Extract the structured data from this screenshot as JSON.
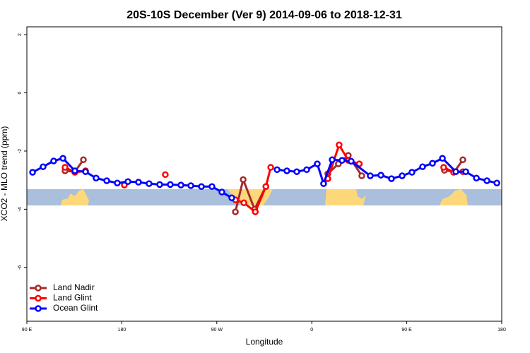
{
  "chart_data": {
    "type": "line",
    "title": "20S-10S December (Ver 9)   2014-09-06 to 2018-12-31",
    "xlabel": "Longitude",
    "ylabel": "XCO2 - MLO trend (ppm)",
    "xlim": [
      90,
      540
    ],
    "ylim": [
      -7.85,
      2.27
    ],
    "xticks": [
      {
        "value": 90,
        "label": "90 E"
      },
      180,
      {
        "value": 270,
        "label": "90 W"
      },
      {
        "value": 360,
        "label": "0"
      },
      {
        "value": 450,
        "label": "90 E"
      },
      {
        "value": 540,
        "label": "180"
      }
    ],
    "yticks": [
      2,
      0,
      -2,
      -4,
      -6
    ],
    "legend": "bottom-left",
    "series": [
      {
        "name": "Land Nadir",
        "color": "#a52a2a",
        "x": [
          126.2,
          135.5,
          143.6,
          null,
          287.6,
          295.0,
          305.8,
          316.5,
          null,
          375.2,
          385.2,
          394.6,
          407.4,
          null,
          485.7,
          495.1,
          503.2
        ],
        "values": [
          -2.68,
          -2.71,
          -2.3,
          null,
          -4.09,
          -2.98,
          -4.0,
          -3.22,
          null,
          -2.78,
          -2.44,
          -2.15,
          -2.85,
          null,
          -2.66,
          -2.71,
          -2.3
        ]
      },
      {
        "name": "Land Glint",
        "color": "#ff0000",
        "x": [
          126.2,
          135.5,
          145.6,
          null,
          182.4,
          null,
          221.2,
          null,
          287.6,
          295.7,
          306.5,
          316.5,
          321.1,
          null,
          375.2,
          385.9,
          394.6,
          405.0,
          null,
          485.0,
          494.4,
          503.2
        ],
        "values": [
          -2.56,
          -2.73,
          -2.68,
          null,
          -3.17,
          null,
          -2.81,
          null,
          -3.68,
          -3.78,
          -4.09,
          -3.22,
          -2.56,
          null,
          -2.95,
          -1.79,
          -2.32,
          -2.44,
          null,
          -2.56,
          -2.73,
          -2.71
        ]
      },
      {
        "name": "Ocean Glint",
        "color": "#0000ff",
        "x": [
          95.4,
          105.4,
          115.4,
          124.2,
          135.5,
          145.6,
          155.6,
          165.7,
          175.7,
          185.8,
          195.8,
          205.8,
          215.9,
          225.9,
          236.0,
          245.4,
          255.4,
          265.4,
          274.8,
          284.2,
          null,
          327.1,
          336.4,
          345.8,
          355.2,
          365.2,
          371.2,
          379.3,
          388.7,
          397.3,
          415.4,
          425.5,
          435.5,
          445.6,
          454.9,
          465.0,
          474.4,
          483.8,
          496.5,
          505.9,
          516.0,
          526.0,
          535.4
        ],
        "values": [
          -2.73,
          -2.54,
          -2.34,
          -2.25,
          -2.68,
          -2.71,
          -2.93,
          -3.02,
          -3.1,
          -3.05,
          -3.07,
          -3.12,
          -3.15,
          -3.15,
          -3.17,
          -3.19,
          -3.22,
          -3.22,
          -3.41,
          -3.61,
          null,
          -2.64,
          -2.68,
          -2.71,
          -2.64,
          -2.44,
          -3.12,
          -2.3,
          -2.32,
          -2.35,
          -2.85,
          -2.83,
          -2.95,
          -2.85,
          -2.73,
          -2.54,
          -2.42,
          -2.25,
          -2.71,
          -2.71,
          -2.93,
          -3.02,
          -3.1
        ]
      }
    ]
  }
}
